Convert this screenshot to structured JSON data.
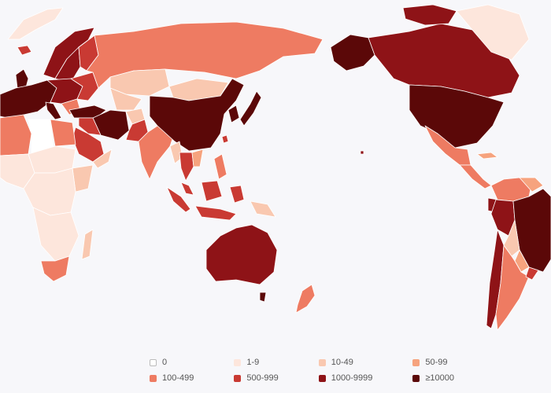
{
  "colors": {
    "background": "#f7f7fa",
    "c0": "#ffffff",
    "c1": "#fde6dc",
    "c10": "#f9c8b0",
    "c50": "#f6a37e",
    "c100": "#ee7b62",
    "c500": "#c93a33",
    "c1000": "#8e1317",
    "c10000": "#5b0808"
  },
  "legend": [
    {
      "label": "0",
      "color": "#ffffff"
    },
    {
      "label": "1-9",
      "color": "#fde6dc"
    },
    {
      "label": "10-49",
      "color": "#f9c8b0"
    },
    {
      "label": "50-99",
      "color": "#f6a37e"
    },
    {
      "label": "100-499",
      "color": "#ee7b62"
    },
    {
      "label": "500-999",
      "color": "#c93a33"
    },
    {
      "label": "1000-9999",
      "color": "#8e1317"
    },
    {
      "label": "≥10000",
      "color": "#5b0808"
    }
  ]
}
